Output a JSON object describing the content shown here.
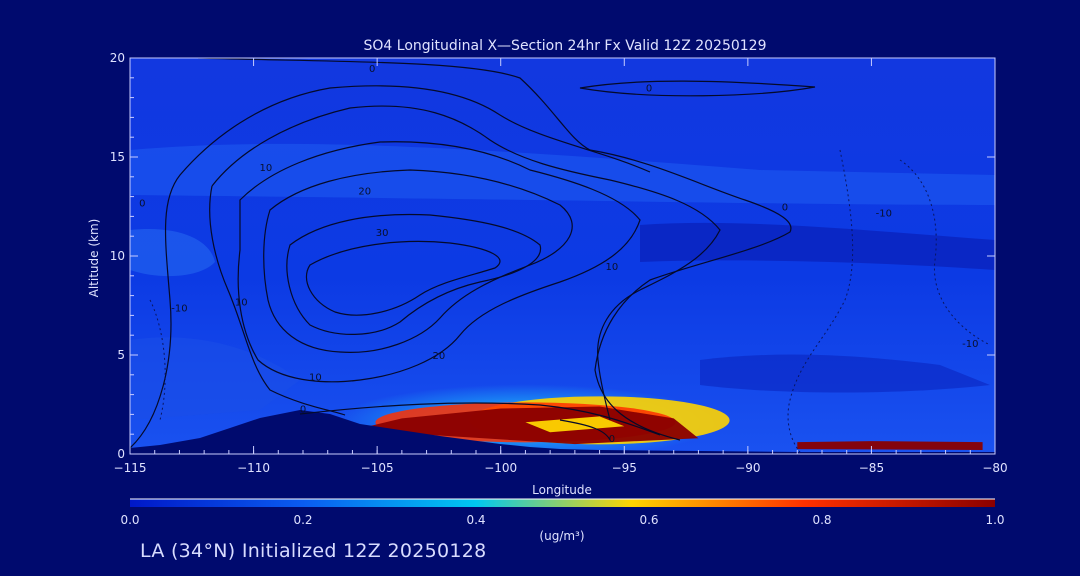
{
  "chart_data": {
    "type": "heatmap",
    "title": "SO4 Longitudinal X—Section 24hr  Fx Valid 12Z 20250129",
    "xlabel": "Longitude",
    "ylabel": "Altitude (km)",
    "xlim": [
      -115,
      -80
    ],
    "ylim": [
      0,
      20
    ],
    "x_ticks": [
      -115,
      -110,
      -105,
      -100,
      -95,
      -90,
      -85,
      -80
    ],
    "x_tick_labels": [
      "−115",
      "−110",
      "−105",
      "−100",
      "−95",
      "−90",
      "−85",
      "−80"
    ],
    "y_ticks": [
      0,
      5,
      10,
      15,
      20
    ],
    "y_tick_labels": [
      "0",
      "5",
      "10",
      "15",
      "20"
    ],
    "colorbar": {
      "min": 0.0,
      "max": 1.0,
      "ticks": [
        0.0,
        0.2,
        0.4,
        0.6,
        0.8,
        1.0
      ],
      "tick_labels": [
        "0.0",
        "0.2",
        "0.4",
        "0.6",
        "0.8",
        "1.0"
      ],
      "unit": "(ug/m³)",
      "colors": [
        "#0018c8",
        "#0a5cf0",
        "#00c8f0",
        "#ffd400",
        "#ff3000",
        "#8a0000"
      ]
    },
    "filled_regions": [
      {
        "level": 0.95,
        "points": [
          [
            -104,
            1.8
          ],
          [
            -100,
            2.3
          ],
          [
            -96,
            2.4
          ],
          [
            -93,
            1.8
          ],
          [
            -92,
            0.8
          ],
          [
            -97,
            0.5
          ],
          [
            -102,
            0.9
          ],
          [
            -106,
            1.2
          ]
        ]
      },
      {
        "level": 0.9,
        "points": [
          [
            -88,
            0.6
          ],
          [
            -85,
            0.65
          ],
          [
            -80.5,
            0.6
          ],
          [
            -80.5,
            0.2
          ],
          [
            -88,
            0.25
          ]
        ]
      },
      {
        "level": 0.5,
        "points": [
          [
            -99,
            1.6
          ],
          [
            -96,
            1.9
          ],
          [
            -95,
            1.4
          ],
          [
            -98,
            1.1
          ]
        ]
      }
    ],
    "contour_labels": [
      {
        "text": "0",
        "lon": -105.2,
        "alt": 19.3
      },
      {
        "text": "0",
        "lon": -94.0,
        "alt": 18.3
      },
      {
        "text": "0",
        "lon": -114.5,
        "alt": 12.5
      },
      {
        "text": "10",
        "lon": -109.5,
        "alt": 14.3
      },
      {
        "text": "20",
        "lon": -105.5,
        "alt": 13.1
      },
      {
        "text": "30",
        "lon": -104.8,
        "alt": 11.0
      },
      {
        "text": "10",
        "lon": -110.5,
        "alt": 7.5
      },
      {
        "text": "10",
        "lon": -107.5,
        "alt": 3.7
      },
      {
        "text": "20",
        "lon": -102.5,
        "alt": 4.8
      },
      {
        "text": "10",
        "lon": -95.5,
        "alt": 9.3
      },
      {
        "text": "0",
        "lon": -88.5,
        "alt": 12.3
      },
      {
        "text": "0",
        "lon": -108,
        "alt": 2.1
      },
      {
        "text": "0",
        "lon": -95.5,
        "alt": 0.6
      },
      {
        "text": "-10",
        "lon": -113,
        "alt": 7.2
      },
      {
        "text": "-10",
        "lon": -84.5,
        "alt": 12.0
      },
      {
        "text": "-10",
        "lon": -81,
        "alt": 5.4
      }
    ]
  },
  "footer": "LA (34°N) Initialized 12Z 20250128"
}
